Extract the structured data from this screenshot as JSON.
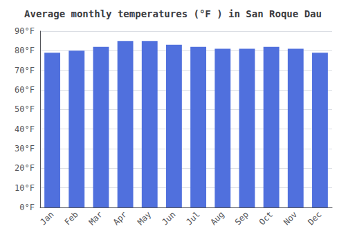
{
  "chart_data": {
    "type": "bar",
    "title": "Average monthly temperatures (°F ) in San Roque Dau",
    "categories": [
      "Jan",
      "Feb",
      "Mar",
      "Apr",
      "May",
      "Jun",
      "Jul",
      "Aug",
      "Sep",
      "Oct",
      "Nov",
      "Dec"
    ],
    "values": [
      79,
      80,
      82,
      85,
      85,
      83,
      82,
      81,
      81,
      82,
      81,
      79
    ],
    "ylim": [
      0,
      90
    ],
    "yticks": [
      {
        "value": 0,
        "label": "0°F"
      },
      {
        "value": 10,
        "label": "10°F"
      },
      {
        "value": 20,
        "label": "20°F"
      },
      {
        "value": 30,
        "label": "30°F"
      },
      {
        "value": 40,
        "label": "40°F"
      },
      {
        "value": 50,
        "label": "50°F"
      },
      {
        "value": 60,
        "label": "60°F"
      },
      {
        "value": 70,
        "label": "70°F"
      },
      {
        "value": 80,
        "label": "80°F"
      },
      {
        "value": 90,
        "label": "90°F"
      }
    ],
    "grid": true
  }
}
